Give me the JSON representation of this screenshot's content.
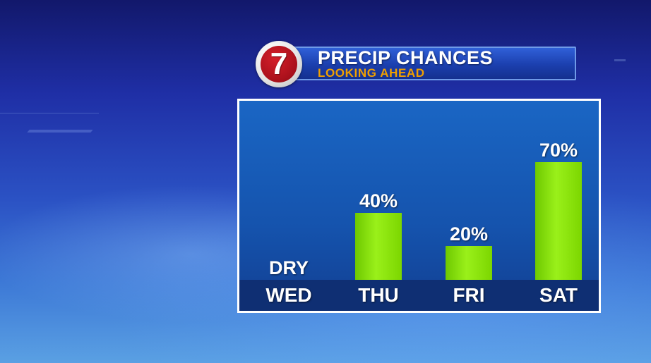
{
  "header": {
    "title": "PRECIP CHANCES",
    "subtitle": "LOOKING AHEAD",
    "logo_text": "7"
  },
  "chart_data": {
    "type": "bar",
    "categories": [
      "WED",
      "THU",
      "FRI",
      "SAT"
    ],
    "values": [
      0,
      40,
      20,
      70
    ],
    "data_labels": [
      "DRY",
      "40%",
      "20%",
      "70%"
    ],
    "ylim": [
      0,
      100
    ],
    "grid": false,
    "legend": "none",
    "colors": {
      "bar": "#8fe616",
      "background": "#1553ad",
      "axis_band": "#0f2f73",
      "frame": "#ffffff"
    }
  }
}
